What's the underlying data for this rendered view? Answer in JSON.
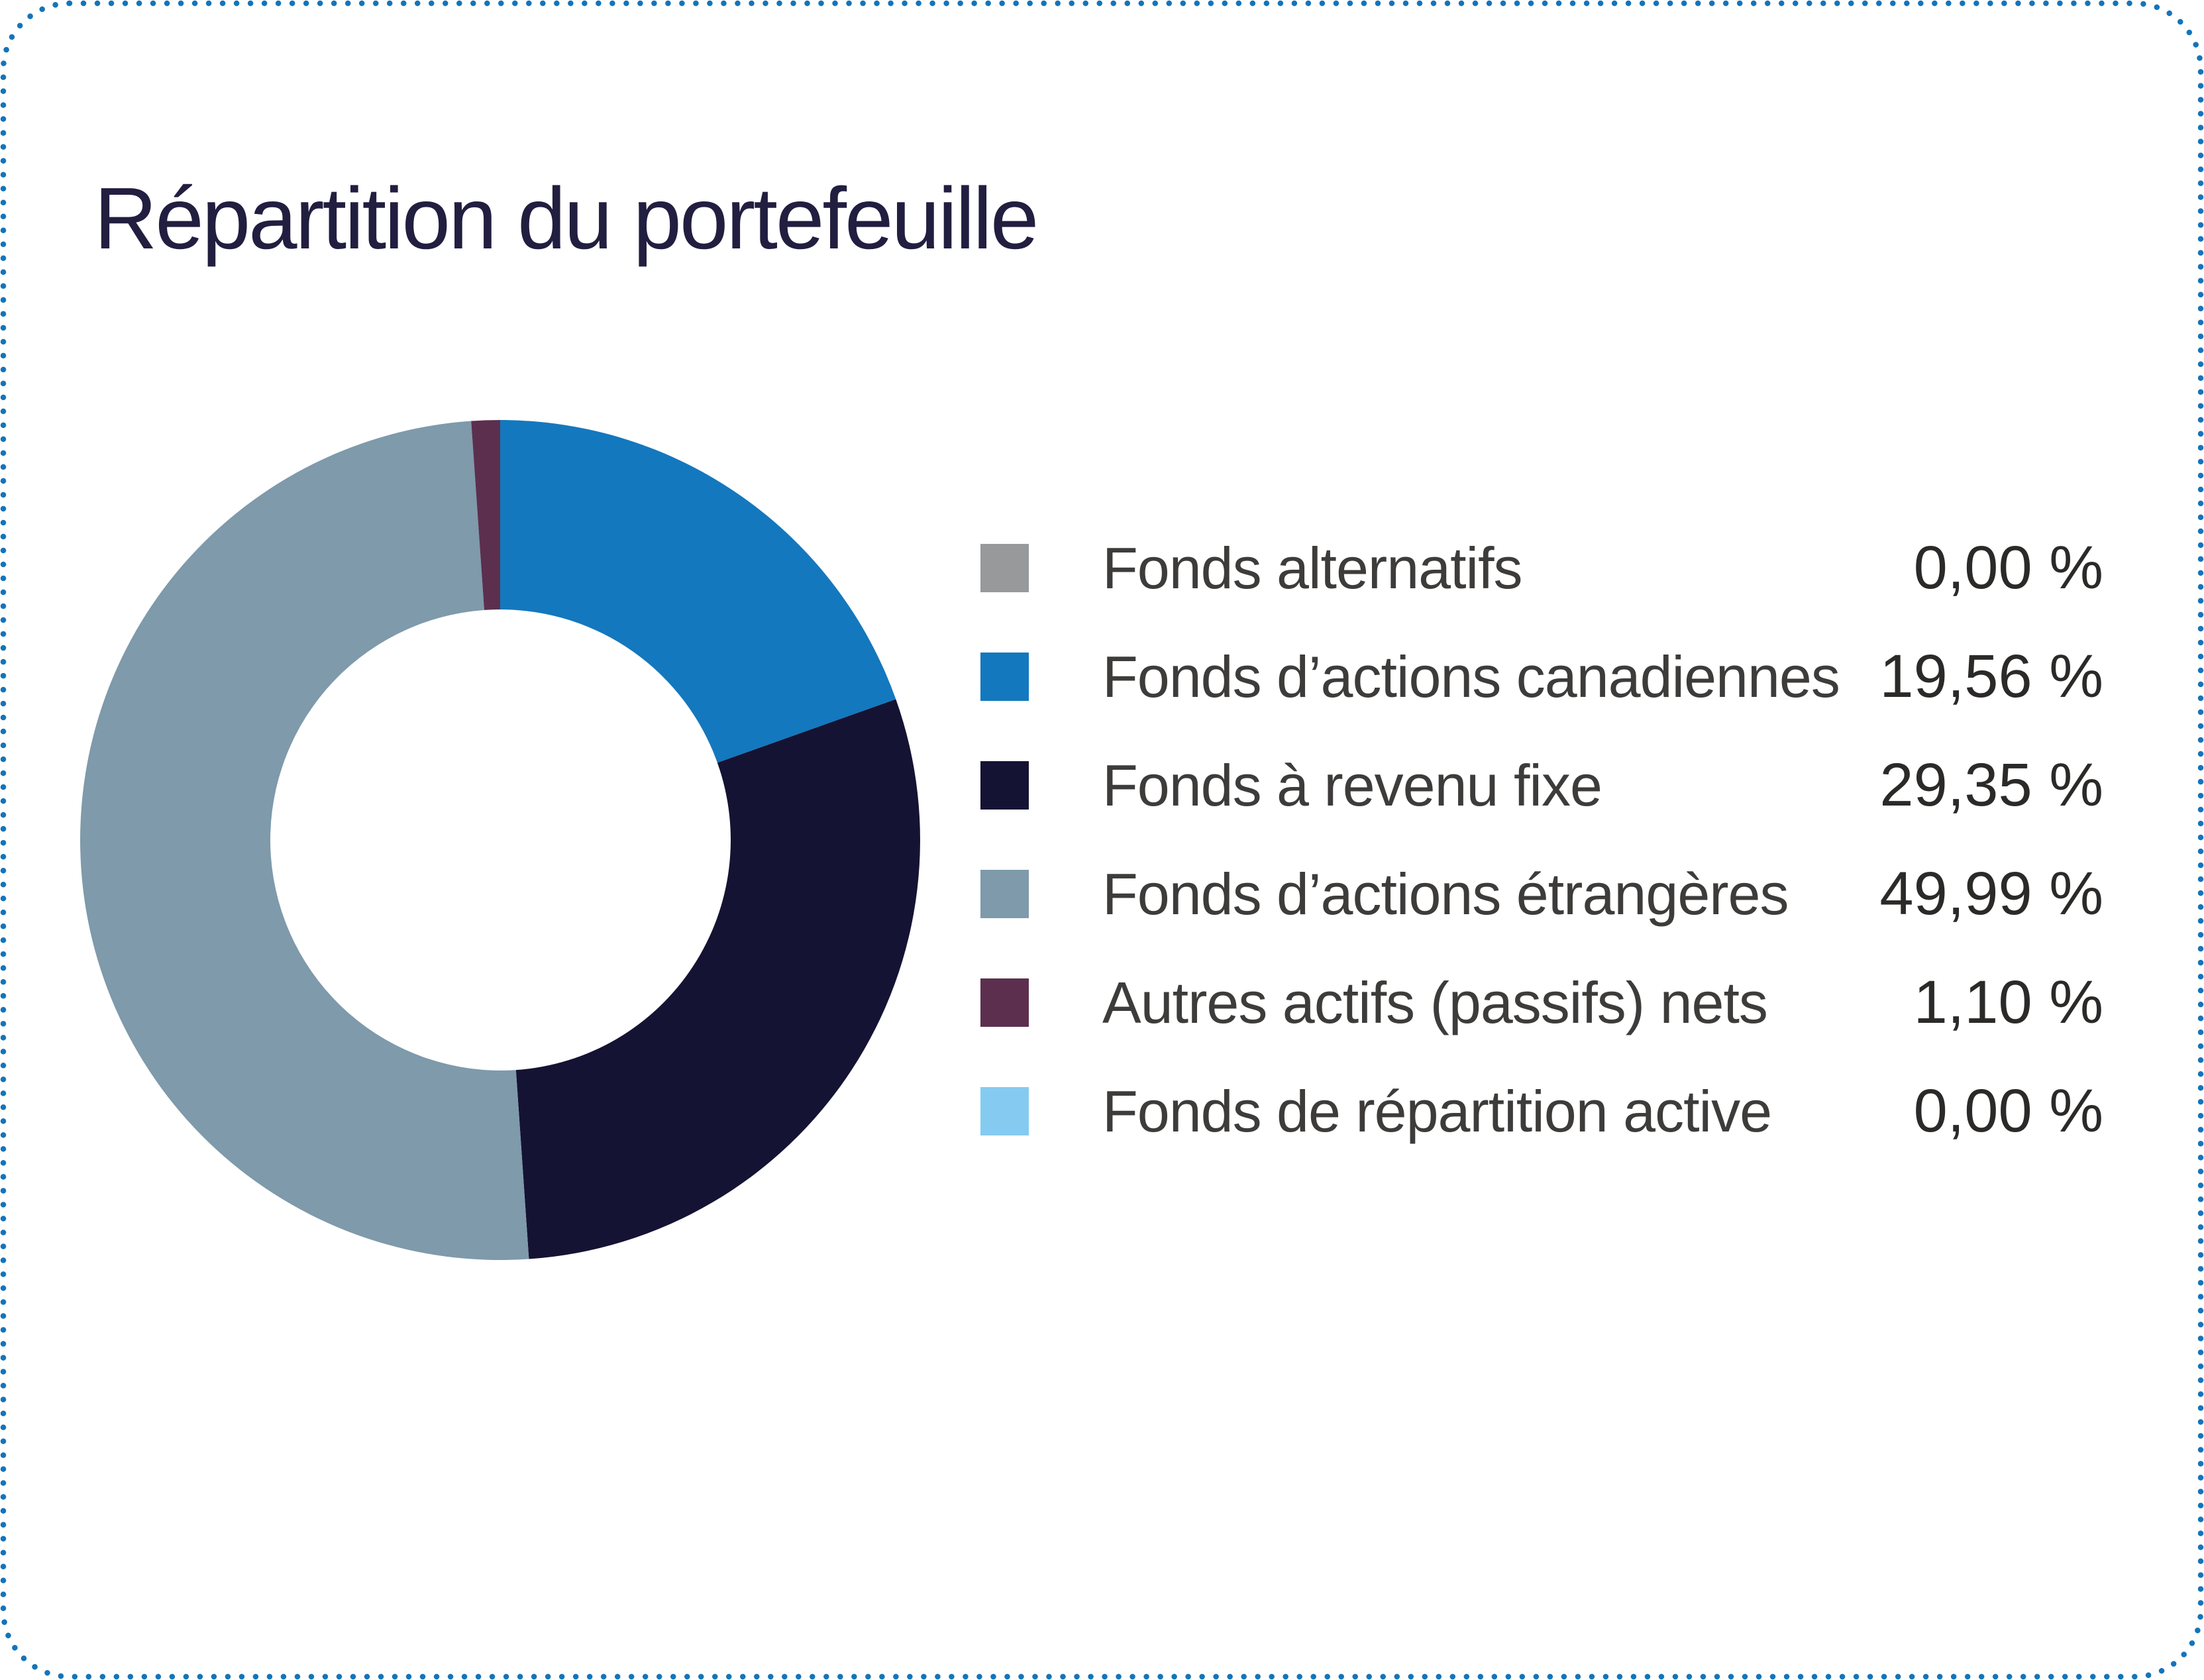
{
  "page": {
    "title": "Répartition du portefeuille"
  },
  "theme": {
    "background": "#FFFFFF",
    "border_dots": "#1474BA",
    "title": "#211E40",
    "label": "#3D3C3B",
    "value": "#2B2A29"
  },
  "chart_data": {
    "type": "pie",
    "subtype": "donut",
    "title": "Répartition du portefeuille",
    "unit": "%",
    "number_format": "fr-CA comma decimals",
    "start_angle_deg": 0,
    "start_reference": "12-o-clock",
    "direction": "clockwise",
    "inner_radius_ratio": 0.549,
    "legend_position": "right",
    "grid": false,
    "series": [
      {
        "label": "Fonds alternatifs",
        "value": 0.0,
        "display": "0,00 %",
        "color": "#97999B"
      },
      {
        "label": "Fonds d’actions canadiennes",
        "value": 19.56,
        "display": "19,56 %",
        "color": "#1478BE"
      },
      {
        "label": "Fonds à revenu fixe",
        "value": 29.35,
        "display": "29,35 %",
        "color": "#151333"
      },
      {
        "label": "Fonds d’actions étrangères",
        "value": 49.99,
        "display": "49,99 %",
        "color": "#7E9AAB"
      },
      {
        "label": "Autres actifs (passifs) nets",
        "value": 1.1,
        "display": "1,10 %",
        "color": "#5C2F4E"
      },
      {
        "label": "Fonds de répartition active",
        "value": 0.0,
        "display": "0,00 %",
        "color": "#85CBF1"
      }
    ]
  }
}
